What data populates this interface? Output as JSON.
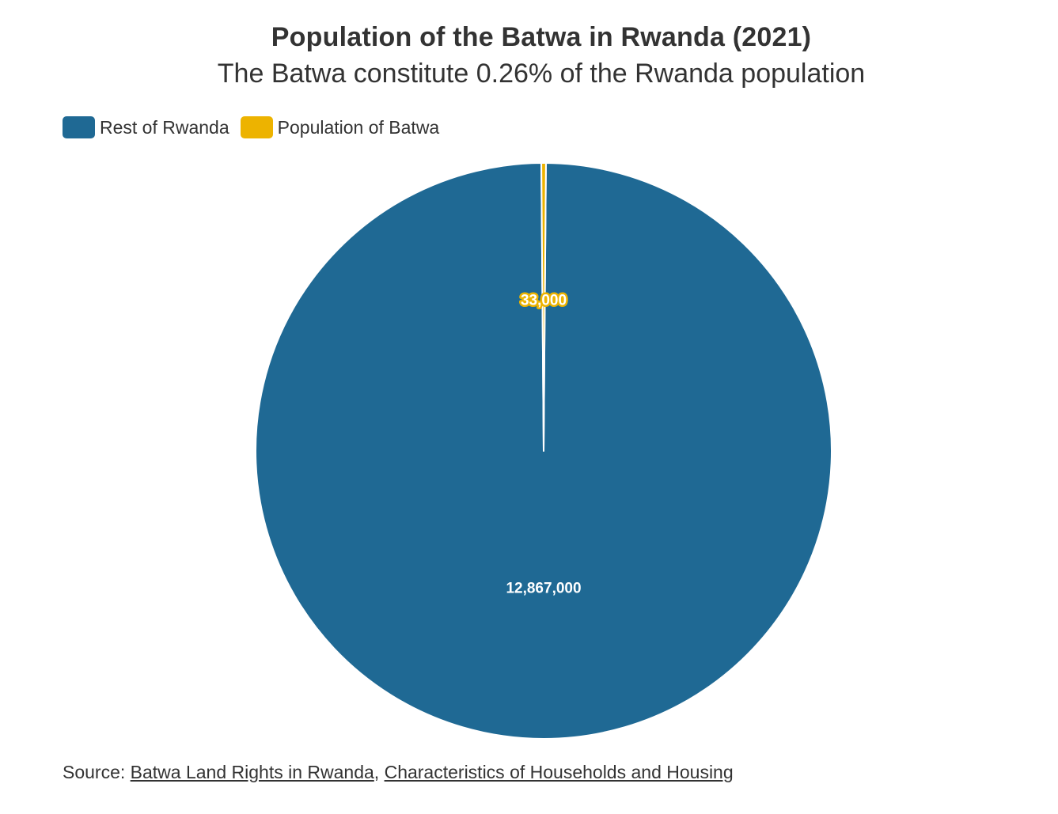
{
  "chart_data": {
    "type": "pie",
    "title": "Population of the Batwa in Rwanda (2021)",
    "subtitle": "The Batwa constitute 0.26% of the Rwanda population",
    "legend_position": "top-left",
    "series": [
      {
        "name": "Rest of Rwanda",
        "value": 12867000,
        "label": "12,867,000",
        "color": "#1f6994"
      },
      {
        "name": "Population of Batwa",
        "value": 33000,
        "label": "33,000",
        "color": "#edb300"
      }
    ]
  },
  "source": {
    "prefix": "Source:",
    "links": [
      "Batwa Land Rights in Rwanda",
      "Characteristics of Households and Housing"
    ],
    "separator": ","
  }
}
